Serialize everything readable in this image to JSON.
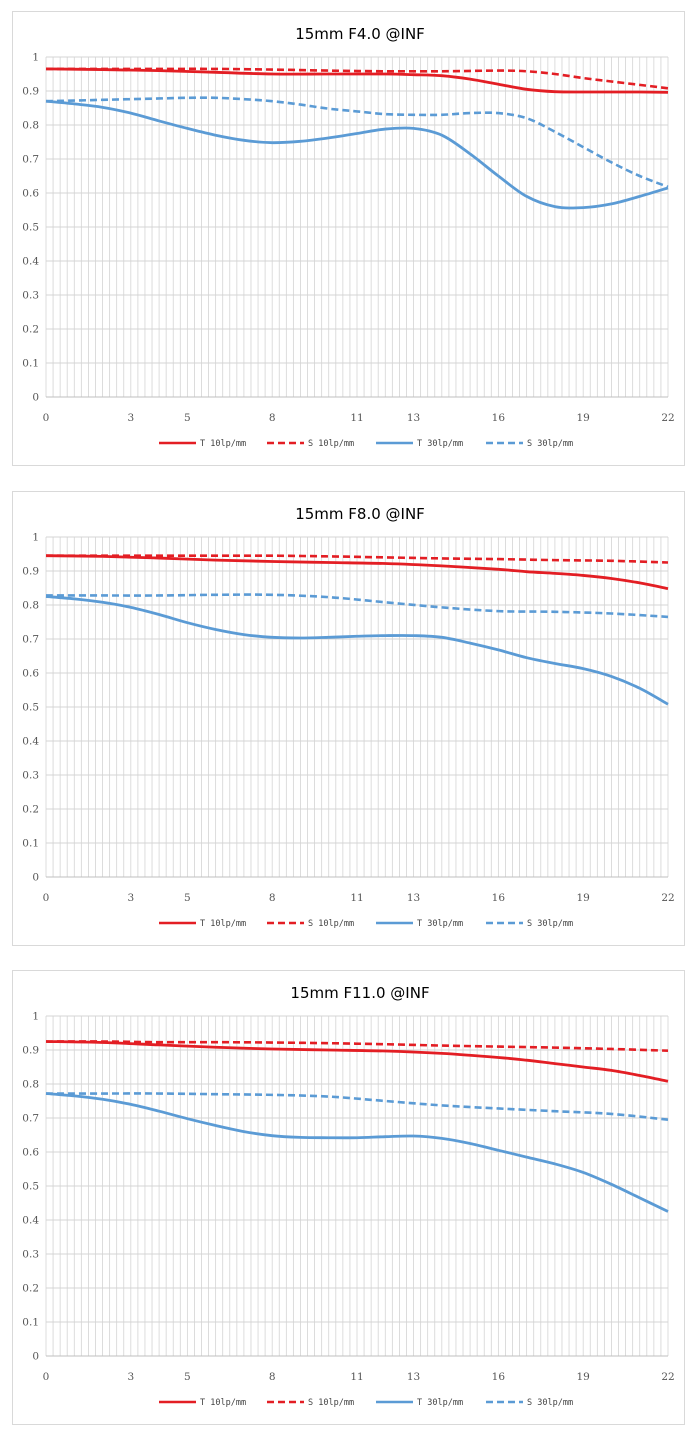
{
  "chart_data": [
    {
      "type": "line",
      "title": "15mm F4.0 @INF",
      "xlabel": "",
      "ylabel": "",
      "xlim": [
        0,
        22
      ],
      "ylim": [
        0,
        1
      ],
      "x_ticks": [
        "0",
        "3",
        "5",
        "8",
        "11",
        "13",
        "16",
        "19",
        "22"
      ],
      "y_ticks": [
        "0",
        "0.1",
        "0.2",
        "0.3",
        "0.4",
        "0.5",
        "0.6",
        "0.7",
        "0.8",
        "0.9",
        "1"
      ],
      "grid": "vertical-minor-and-horizontal",
      "legend": "bottom",
      "series": [
        {
          "name": "T 10lp/mm",
          "color": "#e31e24",
          "dash": false,
          "x": [
            0,
            2,
            4,
            6,
            8,
            10,
            12,
            13,
            14,
            15,
            16,
            17,
            18,
            19,
            20,
            21,
            22
          ],
          "y": [
            0.965,
            0.963,
            0.96,
            0.955,
            0.95,
            0.95,
            0.95,
            0.948,
            0.945,
            0.935,
            0.92,
            0.905,
            0.898,
            0.897,
            0.897,
            0.897,
            0.896
          ]
        },
        {
          "name": "S 10lp/mm",
          "color": "#e31e24",
          "dash": true,
          "x": [
            0,
            2,
            4,
            6,
            8,
            10,
            12,
            14,
            16,
            17,
            18,
            19,
            20,
            21,
            22
          ],
          "y": [
            0.965,
            0.965,
            0.965,
            0.965,
            0.963,
            0.96,
            0.958,
            0.958,
            0.96,
            0.958,
            0.95,
            0.938,
            0.928,
            0.918,
            0.908
          ]
        },
        {
          "name": "T 30lp/mm",
          "color": "#5b9bd5",
          "dash": false,
          "x": [
            0,
            1,
            2,
            3,
            4,
            5,
            6,
            7,
            8,
            9,
            10,
            11,
            12,
            13,
            14,
            15,
            16,
            17,
            18,
            19,
            20,
            21,
            22
          ],
          "y": [
            0.87,
            0.862,
            0.852,
            0.835,
            0.812,
            0.79,
            0.77,
            0.755,
            0.748,
            0.752,
            0.762,
            0.775,
            0.788,
            0.79,
            0.77,
            0.715,
            0.65,
            0.59,
            0.56,
            0.557,
            0.568,
            0.59,
            0.615
          ]
        },
        {
          "name": "S 30lp/mm",
          "color": "#5b9bd5",
          "dash": true,
          "x": [
            0,
            1,
            2,
            3,
            4,
            5,
            6,
            7,
            8,
            9,
            10,
            11,
            12,
            13,
            14,
            15,
            16,
            17,
            18,
            19,
            20,
            21,
            22
          ],
          "y": [
            0.87,
            0.872,
            0.874,
            0.876,
            0.878,
            0.88,
            0.88,
            0.876,
            0.87,
            0.86,
            0.848,
            0.84,
            0.832,
            0.83,
            0.83,
            0.835,
            0.835,
            0.82,
            0.78,
            0.735,
            0.69,
            0.65,
            0.618
          ]
        }
      ]
    },
    {
      "type": "line",
      "title": "15mm F8.0 @INF",
      "xlabel": "",
      "ylabel": "",
      "xlim": [
        0,
        22
      ],
      "ylim": [
        0,
        1
      ],
      "x_ticks": [
        "0",
        "3",
        "5",
        "8",
        "11",
        "13",
        "16",
        "19",
        "22"
      ],
      "y_ticks": [
        "0",
        "0.1",
        "0.2",
        "0.3",
        "0.4",
        "0.5",
        "0.6",
        "0.7",
        "0.8",
        "0.9",
        "1"
      ],
      "grid": "vertical-minor-and-horizontal",
      "legend": "bottom",
      "series": [
        {
          "name": "T 10lp/mm",
          "color": "#e31e24",
          "dash": false,
          "x": [
            0,
            2,
            4,
            6,
            8,
            10,
            12,
            14,
            16,
            17,
            18,
            19,
            20,
            21,
            22
          ],
          "y": [
            0.945,
            0.943,
            0.938,
            0.932,
            0.928,
            0.925,
            0.922,
            0.915,
            0.905,
            0.898,
            0.893,
            0.887,
            0.878,
            0.865,
            0.848
          ]
        },
        {
          "name": "S 10lp/mm",
          "color": "#e31e24",
          "dash": true,
          "x": [
            0,
            2,
            4,
            6,
            8,
            10,
            12,
            14,
            16,
            18,
            20,
            22
          ],
          "y": [
            0.945,
            0.945,
            0.945,
            0.945,
            0.945,
            0.943,
            0.94,
            0.937,
            0.935,
            0.932,
            0.93,
            0.925
          ]
        },
        {
          "name": "T 30lp/mm",
          "color": "#5b9bd5",
          "dash": false,
          "x": [
            0,
            1,
            2,
            3,
            4,
            5,
            6,
            7,
            8,
            9,
            10,
            11,
            12,
            13,
            14,
            15,
            16,
            17,
            18,
            19,
            20,
            21,
            22
          ],
          "y": [
            0.825,
            0.818,
            0.808,
            0.793,
            0.772,
            0.748,
            0.728,
            0.713,
            0.705,
            0.703,
            0.705,
            0.708,
            0.71,
            0.71,
            0.705,
            0.688,
            0.668,
            0.645,
            0.628,
            0.613,
            0.59,
            0.555,
            0.508
          ]
        },
        {
          "name": "S 30lp/mm",
          "color": "#5b9bd5",
          "dash": true,
          "x": [
            0,
            2,
            4,
            6,
            8,
            10,
            12,
            14,
            16,
            18,
            20,
            22
          ],
          "y": [
            0.828,
            0.828,
            0.828,
            0.83,
            0.83,
            0.823,
            0.808,
            0.793,
            0.782,
            0.78,
            0.775,
            0.765
          ]
        }
      ]
    },
    {
      "type": "line",
      "title": "15mm F11.0 @INF",
      "xlabel": "",
      "ylabel": "",
      "xlim": [
        0,
        22
      ],
      "ylim": [
        0,
        1
      ],
      "x_ticks": [
        "0",
        "3",
        "5",
        "8",
        "11",
        "13",
        "16",
        "19",
        "22"
      ],
      "y_ticks": [
        "0",
        "0.1",
        "0.2",
        "0.3",
        "0.4",
        "0.5",
        "0.6",
        "0.7",
        "0.8",
        "0.9",
        "1"
      ],
      "grid": "vertical-minor-and-horizontal",
      "legend": "bottom",
      "series": [
        {
          "name": "T 10lp/mm",
          "color": "#e31e24",
          "dash": false,
          "x": [
            0,
            2,
            4,
            6,
            8,
            10,
            12,
            14,
            16,
            17,
            18,
            19,
            20,
            21,
            22
          ],
          "y": [
            0.925,
            0.922,
            0.915,
            0.908,
            0.903,
            0.9,
            0.897,
            0.89,
            0.878,
            0.87,
            0.86,
            0.85,
            0.84,
            0.825,
            0.808
          ]
        },
        {
          "name": "S 10lp/mm",
          "color": "#e31e24",
          "dash": true,
          "x": [
            0,
            2,
            4,
            6,
            8,
            10,
            12,
            14,
            16,
            18,
            20,
            22
          ],
          "y": [
            0.925,
            0.925,
            0.923,
            0.923,
            0.922,
            0.92,
            0.917,
            0.913,
            0.91,
            0.907,
            0.903,
            0.898
          ]
        },
        {
          "name": "T 30lp/mm",
          "color": "#5b9bd5",
          "dash": false,
          "x": [
            0,
            1,
            2,
            3,
            4,
            5,
            6,
            7,
            8,
            9,
            10,
            11,
            12,
            13,
            14,
            15,
            16,
            17,
            18,
            19,
            20,
            21,
            22
          ],
          "y": [
            0.772,
            0.765,
            0.755,
            0.74,
            0.72,
            0.698,
            0.678,
            0.66,
            0.648,
            0.643,
            0.642,
            0.642,
            0.645,
            0.647,
            0.64,
            0.625,
            0.605,
            0.585,
            0.565,
            0.54,
            0.505,
            0.465,
            0.425
          ]
        },
        {
          "name": "S 30lp/mm",
          "color": "#5b9bd5",
          "dash": true,
          "x": [
            0,
            2,
            4,
            6,
            8,
            10,
            12,
            14,
            16,
            18,
            20,
            22
          ],
          "y": [
            0.772,
            0.772,
            0.772,
            0.77,
            0.768,
            0.763,
            0.75,
            0.737,
            0.728,
            0.72,
            0.712,
            0.695
          ]
        }
      ]
    }
  ]
}
